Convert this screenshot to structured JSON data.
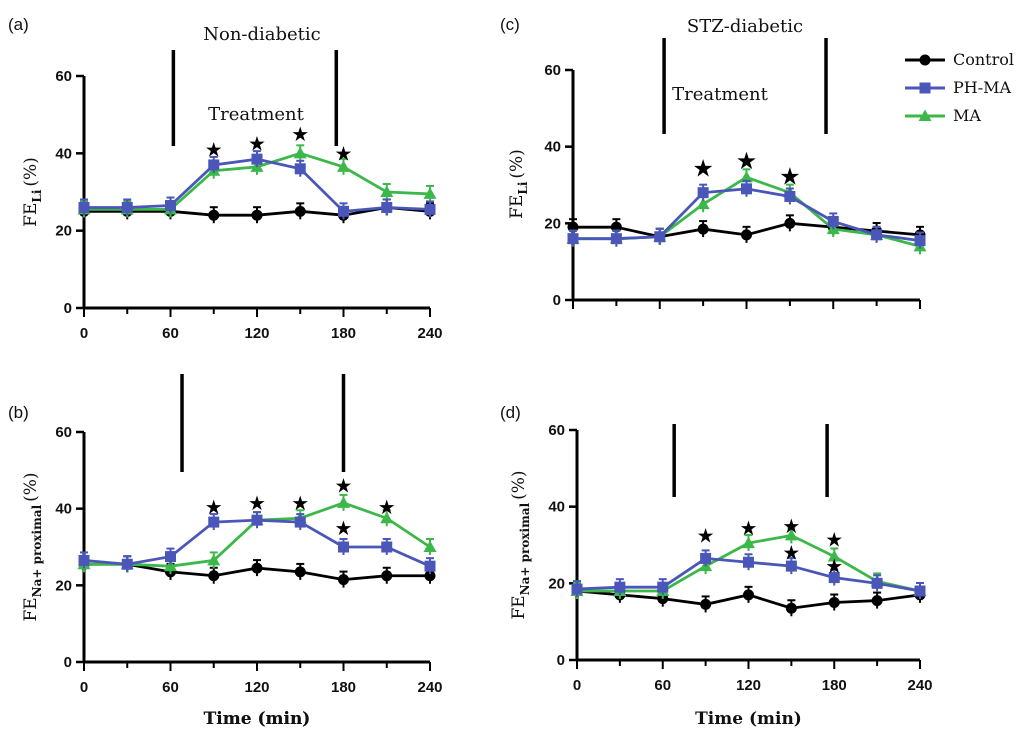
{
  "legend": [
    {
      "name": "Control",
      "color": "#000000",
      "marker": "circle"
    },
    {
      "name": "PH-MA",
      "color": "#4a56b8",
      "marker": "square"
    },
    {
      "name": "MA",
      "color": "#3cb84a",
      "marker": "triangle"
    }
  ],
  "chart_data": [
    {
      "type": "line",
      "panel": "(a)",
      "title": "Non-diabetic",
      "annotation": "Treatment",
      "ylabel_main": "FE",
      "ylabel_sub": "Li",
      "ylabel_unit": "(%)",
      "xlabel": "Time (min)",
      "x": [
        0,
        30,
        60,
        90,
        120,
        150,
        180,
        210,
        240
      ],
      "xticks": [
        "0",
        "60",
        "120",
        "180",
        "240"
      ],
      "yticks": [
        "0",
        "20",
        "40",
        "60"
      ],
      "ylim": [
        0,
        60
      ],
      "xlim": [
        0,
        240
      ],
      "treatment_window": [
        62,
        175
      ],
      "series": [
        {
          "name": "Control",
          "values": [
            25,
            25,
            25,
            24,
            24,
            25,
            24,
            26,
            25
          ]
        },
        {
          "name": "PH-MA",
          "values": [
            26,
            26,
            26.5,
            37,
            38.5,
            36,
            25,
            26,
            25.5
          ]
        },
        {
          "name": "MA",
          "values": [
            25.5,
            25.5,
            25.5,
            35.5,
            36.5,
            40,
            36.5,
            30,
            29.5
          ]
        }
      ],
      "stars": [
        {
          "x": 90,
          "y": 41
        },
        {
          "x": 120,
          "y": 42.5
        },
        {
          "x": 150,
          "y": 45
        },
        {
          "x": 180,
          "y": 40
        }
      ]
    },
    {
      "type": "line",
      "panel": "(b)",
      "title": "",
      "annotation": "",
      "ylabel_main": "FE",
      "ylabel_sub": "Na+ proximal",
      "ylabel_unit": "(%)",
      "xlabel": "Time (min)",
      "x": [
        0,
        30,
        60,
        90,
        120,
        150,
        180,
        210,
        240
      ],
      "xticks": [
        "0",
        "60",
        "120",
        "180",
        "240"
      ],
      "yticks": [
        "0",
        "20",
        "40",
        "60"
      ],
      "ylim": [
        0,
        60
      ],
      "xlim": [
        0,
        240
      ],
      "treatment_window": [
        68,
        180
      ],
      "series": [
        {
          "name": "Control",
          "values": [
            25.5,
            25.5,
            23.5,
            22.5,
            24.5,
            23.5,
            21.5,
            22.5,
            22.5
          ]
        },
        {
          "name": "PH-MA",
          "values": [
            26.5,
            25.5,
            27.5,
            36.5,
            37,
            36.5,
            30,
            30,
            25
          ]
        },
        {
          "name": "MA",
          "values": [
            25.5,
            25.5,
            25,
            26.5,
            37,
            37.5,
            41.5,
            37.5,
            30
          ]
        }
      ],
      "stars": [
        {
          "x": 90,
          "y": 40.5
        },
        {
          "x": 120,
          "y": 41.5
        },
        {
          "x": 150,
          "y": 41.5
        },
        {
          "x": 180,
          "y": 46
        },
        {
          "x": 180,
          "y": 35
        },
        {
          "x": 210,
          "y": 40.5
        }
      ]
    },
    {
      "type": "line",
      "panel": "(c)",
      "title": "STZ-diabetic",
      "annotation": "Treatment",
      "ylabel_main": "FE",
      "ylabel_sub": "Li",
      "ylabel_unit": "(%)",
      "xlabel": "",
      "x": [
        0,
        30,
        60,
        90,
        120,
        150,
        180,
        210,
        240
      ],
      "xticks": [],
      "yticks": [
        "0",
        "20",
        "40",
        "60"
      ],
      "ylim": [
        0,
        60
      ],
      "xlim": [
        0,
        240
      ],
      "treatment_window": [
        63,
        175
      ],
      "series": [
        {
          "name": "Control",
          "values": [
            19,
            19,
            16.5,
            18.5,
            17,
            20,
            19,
            18,
            17
          ]
        },
        {
          "name": "PH-MA",
          "values": [
            16,
            16,
            16.5,
            28,
            29,
            27,
            20.5,
            17,
            15.5
          ]
        },
        {
          "name": "MA",
          "values": [
            16,
            16,
            16.5,
            25,
            32,
            28,
            18.5,
            17,
            14
          ]
        }
      ],
      "stars": [
        {
          "x": 90,
          "y": 34
        },
        {
          "x": 120,
          "y": 36
        },
        {
          "x": 150,
          "y": 32
        }
      ]
    },
    {
      "type": "line",
      "panel": "(d)",
      "title": "",
      "annotation": "",
      "ylabel_main": "FE",
      "ylabel_sub": "Na+ proximal",
      "ylabel_unit": "(%)",
      "xlabel": "Time (min)",
      "x": [
        0,
        30,
        60,
        90,
        120,
        150,
        180,
        210,
        240
      ],
      "xticks": [
        "0",
        "60",
        "120",
        "180",
        "240"
      ],
      "yticks": [
        "0",
        "20",
        "40",
        "60"
      ],
      "ylim": [
        0,
        60
      ],
      "xlim": [
        0,
        240
      ],
      "treatment_window": [
        68,
        175
      ],
      "series": [
        {
          "name": "Control",
          "values": [
            18,
            17,
            16,
            14.5,
            17,
            13.5,
            15,
            15.5,
            17
          ]
        },
        {
          "name": "PH-MA",
          "values": [
            18.5,
            19,
            19,
            26.5,
            25.5,
            24.5,
            21.5,
            20,
            18
          ]
        },
        {
          "name": "MA",
          "values": [
            18,
            18,
            18,
            24.5,
            30.5,
            32.5,
            27,
            20.5,
            18
          ]
        }
      ],
      "stars": [
        {
          "x": 90,
          "y": 32.5
        },
        {
          "x": 120,
          "y": 34.5
        },
        {
          "x": 150,
          "y": 35
        },
        {
          "x": 150,
          "y": 28
        },
        {
          "x": 180,
          "y": 31.5
        },
        {
          "x": 180,
          "y": 24.5
        }
      ]
    }
  ]
}
